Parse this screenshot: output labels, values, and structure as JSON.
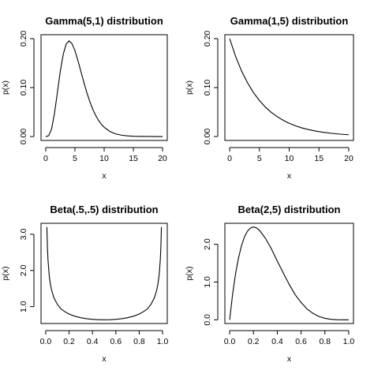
{
  "chart_data": [
    {
      "type": "line",
      "title": "Gamma(5,1) distribution",
      "xlabel": "x",
      "ylabel": "p(x)",
      "xlim": [
        0,
        20
      ],
      "ylim": [
        0,
        0.2
      ],
      "xticks": [
        0,
        5,
        10,
        15,
        20
      ],
      "xtick_labels": [
        "0",
        "5",
        "10",
        "15",
        "20"
      ],
      "yticks": [
        0,
        0.1,
        0.2
      ],
      "ytick_labels": [
        "0.00",
        "0.10",
        "0.20"
      ],
      "grid": false,
      "series": [
        {
          "x": [
            0,
            0.5,
            1,
            1.5,
            2,
            2.5,
            3,
            3.5,
            4,
            4.5,
            5,
            5.5,
            6,
            6.5,
            7,
            7.5,
            8,
            8.5,
            9,
            9.5,
            10,
            11,
            12,
            13,
            14,
            15,
            16,
            17,
            18,
            19,
            20
          ],
          "y": [
            0,
            0.0016,
            0.0153,
            0.0471,
            0.0902,
            0.1336,
            0.168,
            0.1888,
            0.1954,
            0.1898,
            0.1755,
            0.1558,
            0.1339,
            0.1118,
            0.0912,
            0.0729,
            0.0573,
            0.0443,
            0.0337,
            0.0254,
            0.0189,
            0.0102,
            0.0053,
            0.0027,
            0.0013,
            0.0006,
            0.0003,
            0.0001,
            0.0001,
            0,
            0
          ]
        }
      ]
    },
    {
      "type": "line",
      "title": "Gamma(1,5) distribution",
      "xlabel": "x",
      "ylabel": "p(x)",
      "xlim": [
        0,
        20
      ],
      "ylim": [
        0,
        0.2
      ],
      "xticks": [
        0,
        5,
        10,
        15,
        20
      ],
      "xtick_labels": [
        "0",
        "5",
        "10",
        "15",
        "20"
      ],
      "yticks": [
        0,
        0.1,
        0.2
      ],
      "ytick_labels": [
        "0.00",
        "0.10",
        "0.20"
      ],
      "grid": false,
      "series": [
        {
          "x": [
            0,
            1,
            2,
            3,
            4,
            5,
            6,
            7,
            8,
            9,
            10,
            11,
            12,
            13,
            14,
            15,
            16,
            17,
            18,
            19,
            20
          ],
          "y": [
            0.2,
            0.1637,
            0.134,
            0.1098,
            0.0899,
            0.0736,
            0.0602,
            0.0493,
            0.0404,
            0.0331,
            0.0271,
            0.0222,
            0.0181,
            0.0149,
            0.0122,
            0.01,
            0.0082,
            0.0067,
            0.0055,
            0.0045,
            0.0037
          ]
        }
      ]
    },
    {
      "type": "line",
      "title": "Beta(.5,.5) distribution",
      "xlabel": "x",
      "ylabel": "p(x)",
      "xlim": [
        0,
        1
      ],
      "ylim": [
        0.637,
        3.2
      ],
      "xticks": [
        0,
        0.2,
        0.4,
        0.6,
        0.8,
        1
      ],
      "xtick_labels": [
        "0.0",
        "0.2",
        "0.4",
        "0.6",
        "0.8",
        "1.0"
      ],
      "yticks": [
        1,
        2,
        3
      ],
      "ytick_labels": [
        "1.0",
        "2.0",
        "3.0"
      ],
      "grid": false,
      "series": [
        {
          "x": [
            0.01,
            0.015,
            0.02,
            0.03,
            0.04,
            0.05,
            0.07,
            0.1,
            0.13,
            0.16,
            0.2,
            0.25,
            0.3,
            0.35,
            0.4,
            0.45,
            0.5,
            0.55,
            0.6,
            0.65,
            0.7,
            0.75,
            0.8,
            0.84,
            0.87,
            0.9,
            0.93,
            0.95,
            0.96,
            0.97,
            0.98,
            0.985,
            0.99
          ],
          "y": [
            3.199,
            2.618,
            2.274,
            1.866,
            1.624,
            1.46,
            1.248,
            1.061,
            0.9399,
            0.8677,
            0.7958,
            0.7351,
            0.6946,
            0.6674,
            0.6497,
            0.6398,
            0.6366,
            0.6398,
            0.6497,
            0.6674,
            0.6946,
            0.7351,
            0.7958,
            0.8677,
            0.9399,
            1.061,
            1.248,
            1.46,
            1.624,
            1.866,
            2.274,
            2.618,
            3.199
          ]
        }
      ]
    },
    {
      "type": "line",
      "title": "Beta(2,5) distribution",
      "xlabel": "x",
      "ylabel": "p(x)",
      "xlim": [
        0,
        1
      ],
      "ylim": [
        0,
        2.458
      ],
      "xticks": [
        0,
        0.2,
        0.4,
        0.6,
        0.8,
        1
      ],
      "xtick_labels": [
        "0.0",
        "0.2",
        "0.4",
        "0.6",
        "0.8",
        "1.0"
      ],
      "yticks": [
        0,
        1,
        2
      ],
      "ytick_labels": [
        "0.0",
        "1.0",
        "2.0"
      ],
      "grid": false,
      "series": [
        {
          "x": [
            0,
            0.025,
            0.05,
            0.075,
            0.1,
            0.125,
            0.15,
            0.175,
            0.2,
            0.225,
            0.25,
            0.3,
            0.35,
            0.4,
            0.45,
            0.5,
            0.55,
            0.6,
            0.65,
            0.7,
            0.75,
            0.8,
            0.85,
            0.9,
            0.95,
            1
          ],
          "y": [
            0,
            0.6783,
            1.222,
            1.646,
            1.968,
            2.199,
            2.349,
            2.431,
            2.458,
            2.436,
            2.373,
            2.161,
            1.885,
            1.555,
            1.245,
            0.9375,
            0.6663,
            0.4608,
            0.2869,
            0.1701,
            0.0879,
            0.0384,
            0.0128,
            0.0027,
            0.0002,
            0
          ]
        }
      ]
    }
  ]
}
